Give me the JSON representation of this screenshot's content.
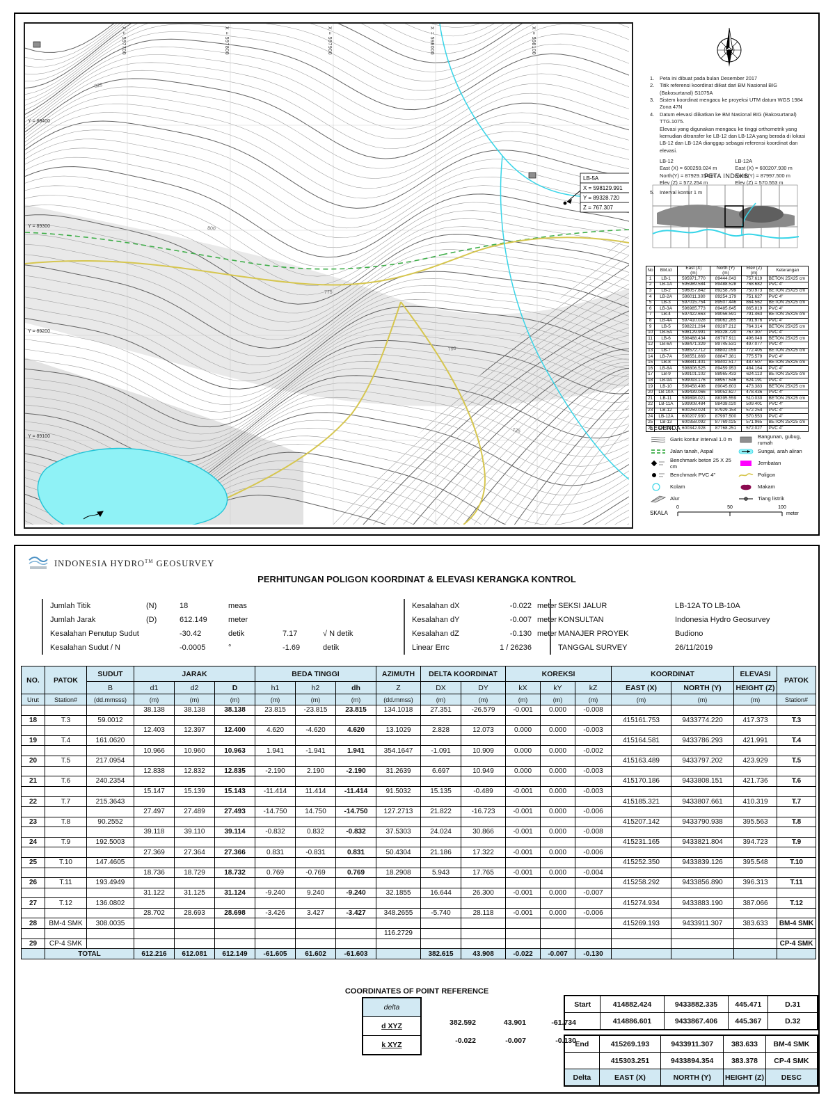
{
  "map_sheet": {
    "grid_x": [
      "X = 597700",
      "X = 597800",
      "X = 597900",
      "X = 598000",
      "X = 598100"
    ],
    "grid_y": [
      "Y = 89400",
      "Y = 89300",
      "Y = 89200",
      "Y = 89100"
    ],
    "contour_labels": [
      "825",
      "800",
      "775",
      "750",
      "725"
    ],
    "callout": {
      "title": "LB-5A",
      "x": "X = 598129.991",
      "y": "Y = 89328.720",
      "z": "Z = 767.307"
    },
    "notes": [
      {
        "num": "1.",
        "lines": [
          "Peta ini dibuat pada bulan Desember 2017"
        ]
      },
      {
        "num": "2.",
        "lines": [
          "Titik referensi koordinat diikat dari BM Nasional BIG (Bakosurtanal) S1075A"
        ]
      },
      {
        "num": "3.",
        "lines": [
          "Sistem koordinat mengacu ke proyeksi UTM datum WGS 1984 Zona 47N"
        ]
      },
      {
        "num": "4.",
        "lines": [
          "Datum elevasi diikatkan ke BM Nasional BIG (Bakosurtanal) TTG.1075.",
          "Elevasi yang digunakan mengacu ke tinggi orthometrik yang",
          "kemudian ditransfer ke LB-12 dan LB-12A yang berada di lokasi",
          "LB-12 dan LB-12A dianggap sebagai referensi koordinat dan elevasi."
        ]
      }
    ],
    "note5": {
      "num": "5.",
      "lines": [
        "Interval kontur 1 m"
      ]
    },
    "ref_blocks": [
      {
        "name": "LB-12",
        "east": "East (X) =  600259.024 m",
        "north": "North(Y) =  87929.154 m",
        "elev": "Elev (Z)  =  572.254 m"
      },
      {
        "name": "LB-12A",
        "east": "East (X) =  600207.930 m",
        "north": "North(Y) =  87997.500 m",
        "elev": "Elev (Z)  =  570.553 m"
      }
    ],
    "peta_indeks_title": "PETA INDEKS",
    "bm_table": {
      "headers": [
        [
          "No",
          ""
        ],
        [
          "BM.id",
          ""
        ],
        [
          "East  (X)",
          "(m)"
        ],
        [
          "North  (Y)",
          "(m)"
        ],
        [
          "Elev (Z)",
          "(m)"
        ],
        [
          "Keterangan",
          ""
        ]
      ],
      "rows": [
        [
          "1",
          "LB-1",
          "595971.770",
          "89444.043",
          "757.619",
          "BETON 25X25 cm"
        ],
        [
          "2",
          "LB-1A",
          "595989.584",
          "89488.528",
          "768.682",
          "PVC 4\""
        ],
        [
          "3",
          "LB-2",
          "596057.842",
          "89258.799",
          "750.973",
          "BETON 25X25 cm"
        ],
        [
          "4",
          "LB-2A",
          "596011.380",
          "89254.179",
          "751.627",
          "PVC 4\""
        ],
        [
          "5",
          "LB-3",
          "597015.754",
          "89507.446",
          "864.562",
          "BETON 25X25 cm"
        ],
        [
          "6",
          "LB-3A",
          "596985.773",
          "89485.645",
          "865.819",
          "PVC 4\""
        ],
        [
          "7",
          "LB-4",
          "597422.663",
          "89056.591",
          "791.463",
          "BETON 25X25 cm"
        ],
        [
          "8",
          "LB-4A",
          "597410.028",
          "89062.265",
          "791.976",
          "PVC 4\""
        ],
        [
          "9",
          "LB-5",
          "598221.264",
          "89287.212",
          "764.314",
          "BETON 25X25 cm"
        ],
        [
          "10",
          "LB-5A",
          "598129.991",
          "89328.720",
          "767.307",
          "PVC 4\""
        ],
        [
          "11",
          "LB-6",
          "598488.434",
          "89707.911",
          "496.048",
          "BETON 25X25 cm"
        ],
        [
          "12",
          "LB-6A",
          "598471.329",
          "89745.531",
          "497.077",
          "PVC 4\""
        ],
        [
          "13",
          "LB-7",
          "598572.712",
          "88802.059",
          "772.405",
          "BETON 25X25 cm"
        ],
        [
          "14",
          "LB-7A",
          "598551.869",
          "88847.381",
          "775.579",
          "PVC 4\""
        ],
        [
          "15",
          "LB-8",
          "598841.401",
          "89402.517",
          "487.507",
          "BETON 25X25 cm"
        ],
        [
          "16",
          "LB-8A",
          "598806.525",
          "89459.953",
          "484.164",
          "PVC 4\""
        ],
        [
          "17",
          "LB-9",
          "599101.102",
          "88965.433",
          "624.113",
          "BETON 25X25 cm"
        ],
        [
          "18",
          "LB-9A",
          "599093.176",
          "88957.546",
          "624.191",
          "PVC 4\""
        ],
        [
          "19",
          "LB-10",
          "599458.498",
          "89045.603",
          "473.383",
          "BETON 25X25 cm"
        ],
        [
          "20",
          "LB-10A",
          "599439.066",
          "89052.627",
          "478.436",
          "PVC 4\""
        ],
        [
          "21",
          "LB-11",
          "599898.021",
          "88395.559",
          "510.030",
          "BETON 25X25 cm"
        ],
        [
          "22",
          "LB-11A",
          "599908.484",
          "88438.020",
          "509.401",
          "PVC 4\""
        ],
        [
          "23",
          "LB-12",
          "600259.024",
          "87929.154",
          "572.254",
          "PVC 4\""
        ],
        [
          "24",
          "LB-12A",
          "600207.930",
          "87997.500",
          "570.553",
          "PVC 4\""
        ],
        [
          "25",
          "LB-13",
          "600358.092",
          "87769.025",
          "571.965",
          "BETON 25X25 cm"
        ],
        [
          "26",
          "LB-13A",
          "600342.928",
          "87768.251",
          "572.027",
          "PVC 4\""
        ]
      ]
    },
    "legend": {
      "title": "LEGENDA",
      "left": [
        {
          "icon": "contour-icon",
          "label": "Garis kontur interval 1.0 m"
        },
        {
          "icon": "road-icon",
          "label": "Jalan tanah, Aspal"
        },
        {
          "icon": "bm-beton-icon",
          "label": "Benchmark beton 25 X 25 cm"
        },
        {
          "icon": "bm-pvc-icon",
          "label": "Benchmark PVC 4\""
        },
        {
          "icon": "kolam-icon",
          "label": "Kolam"
        },
        {
          "icon": "alur-icon",
          "label": "Alur"
        }
      ],
      "right": [
        {
          "icon": "bangunan-icon",
          "label": "Bangunan, gubug, rumah"
        },
        {
          "icon": "sungai-icon",
          "label": "Sungai, arah aliran"
        },
        {
          "icon": "jembatan-icon",
          "label": "Jembatan"
        },
        {
          "icon": "poligon-icon",
          "label": "Poligon"
        },
        {
          "icon": "makam-icon",
          "label": "Makam"
        },
        {
          "icon": "tiang-icon",
          "label": "Tiang listrik"
        }
      ]
    },
    "scale": {
      "label": "SKALA",
      "ticks": [
        "0",
        "50",
        "100"
      ],
      "unit": "meter"
    }
  },
  "report": {
    "company": "INDONESIA HYDRO",
    "company_tm": "TM",
    "company_suffix": " GEOSURVEY",
    "title": "PERHITUNGAN POLIGON KOORDINAT & ELEVASI KERANGKA KONTROL",
    "summary_left": [
      [
        "Jumlah Titik",
        "(N)",
        "18",
        "meas",
        "",
        ""
      ],
      [
        "Jumlah Jarak",
        "(D)",
        "612.149",
        "meter",
        "",
        ""
      ],
      [
        "Kesalahan Penutup Sudut",
        "",
        "-30.42",
        "detik",
        "7.17",
        "√ N detik"
      ],
      [
        "Kesalahan Sudut  / N",
        "",
        "-0.0005",
        "°",
        "-1.69",
        "detik"
      ]
    ],
    "summary_mid": [
      [
        "Kesalahan dX",
        "-0.022",
        "meter"
      ],
      [
        "Kesalahan dY",
        "-0.007",
        "meter"
      ],
      [
        "Kesalahan dZ",
        "-0.130",
        "meter"
      ],
      [
        "Linear Errc",
        "1 /  26236",
        ""
      ]
    ],
    "summary_right": [
      [
        "SEKSI JALUR",
        "LB-12A TO LB-10A"
      ],
      [
        "KONSULTAN",
        "Indonesia Hydro Geosurvey"
      ],
      [
        "MANAJER PROYEK",
        "Budiono"
      ],
      [
        "TANGGAL SURVEY",
        "26/11/2019"
      ]
    ],
    "table": {
      "group_headers": [
        "NO.",
        "PATOK",
        "SUDUT",
        "JARAK",
        "BEDA TINGGI",
        "AZIMUTH",
        "DELTA KOORDINAT",
        "KOREKSI",
        "KOORDINAT",
        "ELEVASI",
        "PATOK"
      ],
      "sub_headers": [
        "B",
        "d1",
        "d2",
        "D",
        "h1",
        "h2",
        "dh",
        "Z",
        "DX",
        "DY",
        "kX",
        "kY",
        "kZ",
        "EAST (X)",
        "NORTH (Y)",
        "HEIGHT (Z)"
      ],
      "unit_row": [
        "Urut",
        "Station#",
        "(dd.mmsss)",
        "(m)",
        "(m)",
        "(m)",
        "(m)",
        "(m)",
        "(m)",
        "(dd.mmss)",
        "(m)",
        "(m)",
        "(m)",
        "(m)",
        "(m)",
        "(m)",
        "(m)",
        "(m)",
        "Station#"
      ],
      "rows": [
        [
          "",
          "",
          "",
          "38.138",
          "38.138",
          "38.138",
          "23.815",
          "-23.815",
          "23.815",
          "134.1018",
          "27.351",
          "-26.579",
          "-0.001",
          "0.000",
          "-0.008",
          "",
          "",
          "",
          ""
        ],
        [
          "18",
          "T.3",
          "59.0012",
          "",
          "",
          "",
          "",
          "",
          "",
          "",
          "",
          "",
          "",
          "",
          "",
          "415161.753",
          "9433774.220",
          "417.373",
          "T.3"
        ],
        [
          "",
          "",
          "",
          "12.403",
          "12.397",
          "12.400",
          "4.620",
          "-4.620",
          "4.620",
          "13.1029",
          "2.828",
          "12.073",
          "0.000",
          "0.000",
          "-0.003",
          "",
          "",
          "",
          ""
        ],
        [
          "19",
          "T.4",
          "161.0620",
          "",
          "",
          "",
          "",
          "",
          "",
          "",
          "",
          "",
          "",
          "",
          "",
          "415164.581",
          "9433786.293",
          "421.991",
          "T.4"
        ],
        [
          "",
          "",
          "",
          "10.966",
          "10.960",
          "10.963",
          "1.941",
          "-1.941",
          "1.941",
          "354.1647",
          "-1.091",
          "10.909",
          "0.000",
          "0.000",
          "-0.002",
          "",
          "",
          "",
          ""
        ],
        [
          "20",
          "T.5",
          "217.0954",
          "",
          "",
          "",
          "",
          "",
          "",
          "",
          "",
          "",
          "",
          "",
          "",
          "415163.489",
          "9433797.202",
          "423.929",
          "T.5"
        ],
        [
          "",
          "",
          "",
          "12.838",
          "12.832",
          "12.835",
          "-2.190",
          "2.190",
          "-2.190",
          "31.2639",
          "6.697",
          "10.949",
          "0.000",
          "0.000",
          "-0.003",
          "",
          "",
          "",
          ""
        ],
        [
          "21",
          "T.6",
          "240.2354",
          "",
          "",
          "",
          "",
          "",
          "",
          "",
          "",
          "",
          "",
          "",
          "",
          "415170.186",
          "9433808.151",
          "421.736",
          "T.6"
        ],
        [
          "",
          "",
          "",
          "15.147",
          "15.139",
          "15.143",
          "-11.414",
          "11.414",
          "-11.414",
          "91.5032",
          "15.135",
          "-0.489",
          "-0.001",
          "0.000",
          "-0.003",
          "",
          "",
          "",
          ""
        ],
        [
          "22",
          "T.7",
          "215.3643",
          "",
          "",
          "",
          "",
          "",
          "",
          "",
          "",
          "",
          "",
          "",
          "",
          "415185.321",
          "9433807.661",
          "410.319",
          "T.7"
        ],
        [
          "",
          "",
          "",
          "27.497",
          "27.489",
          "27.493",
          "-14.750",
          "14.750",
          "-14.750",
          "127.2713",
          "21.822",
          "-16.723",
          "-0.001",
          "0.000",
          "-0.006",
          "",
          "",
          "",
          ""
        ],
        [
          "23",
          "T.8",
          "90.2552",
          "",
          "",
          "",
          "",
          "",
          "",
          "",
          "",
          "",
          "",
          "",
          "",
          "415207.142",
          "9433790.938",
          "395.563",
          "T.8"
        ],
        [
          "",
          "",
          "",
          "39.118",
          "39.110",
          "39.114",
          "-0.832",
          "0.832",
          "-0.832",
          "37.5303",
          "24.024",
          "30.866",
          "-0.001",
          "0.000",
          "-0.008",
          "",
          "",
          "",
          ""
        ],
        [
          "24",
          "T.9",
          "192.5003",
          "",
          "",
          "",
          "",
          "",
          "",
          "",
          "",
          "",
          "",
          "",
          "",
          "415231.165",
          "9433821.804",
          "394.723",
          "T.9"
        ],
        [
          "",
          "",
          "",
          "27.369",
          "27.364",
          "27.366",
          "0.831",
          "-0.831",
          "0.831",
          "50.4304",
          "21.186",
          "17.322",
          "-0.001",
          "0.000",
          "-0.006",
          "",
          "",
          "",
          ""
        ],
        [
          "25",
          "T.10",
          "147.4605",
          "",
          "",
          "",
          "",
          "",
          "",
          "",
          "",
          "",
          "",
          "",
          "",
          "415252.350",
          "9433839.126",
          "395.548",
          "T.10"
        ],
        [
          "",
          "",
          "",
          "18.736",
          "18.729",
          "18.732",
          "0.769",
          "-0.769",
          "0.769",
          "18.2908",
          "5.943",
          "17.765",
          "-0.001",
          "0.000",
          "-0.004",
          "",
          "",
          "",
          ""
        ],
        [
          "26",
          "T.11",
          "193.4949",
          "",
          "",
          "",
          "",
          "",
          "",
          "",
          "",
          "",
          "",
          "",
          "",
          "415258.292",
          "9433856.890",
          "396.313",
          "T.11"
        ],
        [
          "",
          "",
          "",
          "31.122",
          "31.125",
          "31.124",
          "-9.240",
          "9.240",
          "-9.240",
          "32.1855",
          "16.644",
          "26.300",
          "-0.001",
          "0.000",
          "-0.007",
          "",
          "",
          "",
          ""
        ],
        [
          "27",
          "T.12",
          "136.0802",
          "",
          "",
          "",
          "",
          "",
          "",
          "",
          "",
          "",
          "",
          "",
          "",
          "415274.934",
          "9433883.190",
          "387.066",
          "T.12"
        ],
        [
          "",
          "",
          "",
          "28.702",
          "28.693",
          "28.698",
          "-3.426",
          "3.427",
          "-3.427",
          "348.2655",
          "-5.740",
          "28.118",
          "-0.001",
          "0.000",
          "-0.006",
          "",
          "",
          "",
          ""
        ],
        [
          "28",
          "BM-4 SMK",
          "308.0035",
          "",
          "",
          "",
          "",
          "",
          "",
          "",
          "",
          "",
          "",
          "",
          "",
          "415269.193",
          "9433911.307",
          "383.633",
          "BM-4 SMK"
        ],
        [
          "",
          "",
          "",
          "",
          "",
          "",
          "",
          "",
          "",
          "116.2729",
          "",
          "",
          "",
          "",
          "",
          "",
          "",
          "",
          ""
        ],
        [
          "29",
          "CP-4 SMK",
          "",
          "",
          "",
          "",
          "",
          "",
          "",
          "",
          "",
          "",
          "",
          "",
          "",
          "",
          "",
          "",
          "CP-4 SMK"
        ]
      ],
      "total": [
        "TOTAL",
        "612.216",
        "612.081",
        "612.149",
        "-61.605",
        "61.602",
        "-61.603",
        "",
        "382.615",
        "43.908",
        "-0.022",
        "-0.007",
        "-0.130"
      ]
    },
    "ref_section": {
      "title": "COORDINATES OF POINT REFERENCE",
      "delta_header": "delta",
      "delta_rows": [
        {
          "label": "d XYZ",
          "values": [
            "382.592",
            "43.901",
            "-61.734"
          ]
        },
        {
          "label": "k XYZ",
          "values": [
            "-0.022",
            "-0.007",
            "-0.130"
          ]
        }
      ],
      "start_label": "Start",
      "start_rows": [
        [
          "414882.424",
          "9433882.335",
          "445.471",
          "D.31"
        ],
        [
          "414886.601",
          "9433867.406",
          "445.367",
          "D.32"
        ]
      ],
      "end_label": "End",
      "end_rows": [
        [
          "415269.193",
          "9433911.307",
          "383.633",
          "BM-4 SMK"
        ],
        [
          "415303.251",
          "9433894.354",
          "383.378",
          "CP-4 SMK"
        ]
      ],
      "end_footer": [
        "Delta",
        "EAST (X)",
        "NORTH (Y)",
        "HEIGHT (Z)",
        "DESC"
      ]
    }
  },
  "colors": {
    "header_fill": "#d2e9f3",
    "contour": "#9a9a9a",
    "contour_index": "#636363",
    "road_yellow": "#d6c64f",
    "road_green": "#3fae49",
    "water": "#38d5e8",
    "lake_fill": "#8ff2f6",
    "jembatan": "#ff00ff",
    "makam": "#8b0a50"
  }
}
